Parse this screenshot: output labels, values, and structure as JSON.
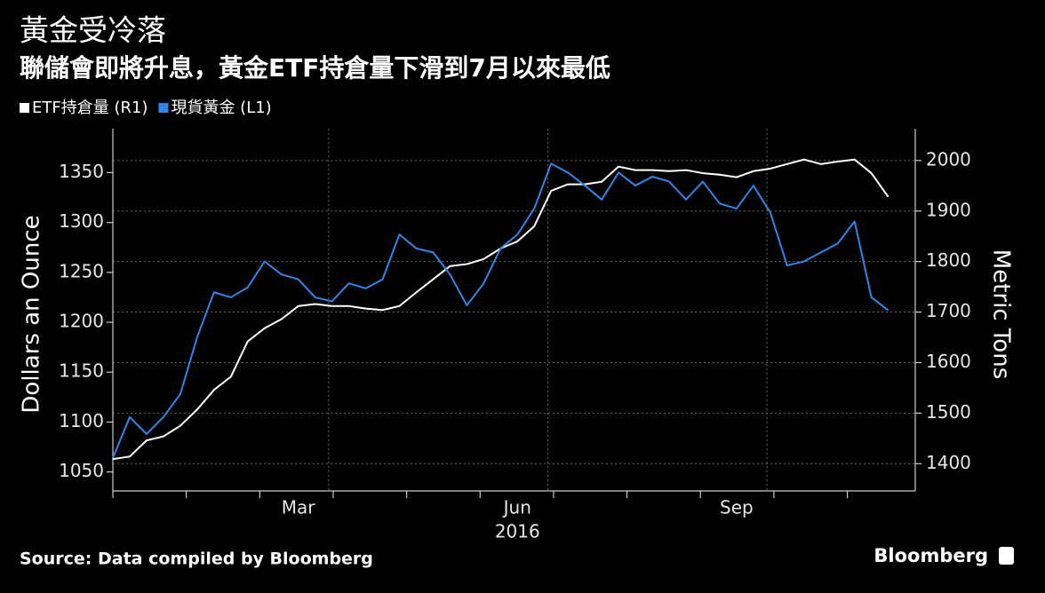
{
  "chart_data": {
    "type": "line",
    "title": "黃金受冷落",
    "subtitle": "聯儲會即將升息，黃金ETF持倉量下滑到7月以來最低",
    "ylabel": "Dollars an Ounce",
    "y2label": "Metric Tons",
    "year_label": "2016",
    "source": "Source: Data compiled by Bloomberg",
    "brand": "Bloomberg",
    "categories": [
      null,
      null,
      null,
      null,
      null,
      null,
      null,
      null,
      null,
      null,
      null,
      "Mar",
      null,
      null,
      null,
      null,
      null,
      null,
      null,
      null,
      null,
      null,
      null,
      null,
      "Jun",
      null,
      null,
      null,
      null,
      null,
      null,
      null,
      null,
      null,
      null,
      null,
      null,
      "Sep",
      null,
      null,
      null,
      null,
      null,
      null,
      null,
      null,
      null
    ],
    "series": [
      {
        "name": "ETF持倉量 (R1)",
        "color": "#ffffff",
        "axis": "y2",
        "values": [
          1409,
          1414,
          1446,
          1454,
          1475,
          1507,
          1546,
          1572,
          1642,
          1668,
          1686,
          1712,
          1716,
          1712,
          1712,
          1707,
          1704,
          1712,
          1739,
          1765,
          1791,
          1795,
          1805,
          1826,
          1840,
          1870,
          1940,
          1953,
          1953,
          1958,
          1988,
          1981,
          1981,
          1979,
          1981,
          1975,
          1972,
          1967,
          1979,
          1984,
          1993,
          2002,
          1993,
          1998,
          2002,
          1975,
          1928
        ]
      },
      {
        "name": "現貨黃金 (L1)",
        "color": "#2f86e6",
        "values": [
          1064,
          1105,
          1088,
          1105,
          1128,
          1185,
          1230,
          1225,
          1235,
          1261,
          1248,
          1243,
          1225,
          1221,
          1239,
          1234,
          1243,
          1288,
          1274,
          1270,
          1248,
          1217,
          1239,
          1274,
          1288,
          1314,
          1359,
          1350,
          1337,
          1323,
          1350,
          1337,
          1346,
          1341,
          1323,
          1341,
          1319,
          1314,
          1337,
          1310,
          1257,
          1261,
          1270,
          1279,
          1301,
          1225,
          1212
        ]
      }
    ],
    "ylim": [
      1031,
      1394
    ],
    "yticks": [
      1050,
      1100,
      1150,
      1200,
      1250,
      1300,
      1350
    ],
    "y2lim": [
      1346,
      2063
    ],
    "y2ticks": [
      1400,
      1500,
      1600,
      1700,
      1800,
      1900,
      2000
    ],
    "grid": true
  }
}
